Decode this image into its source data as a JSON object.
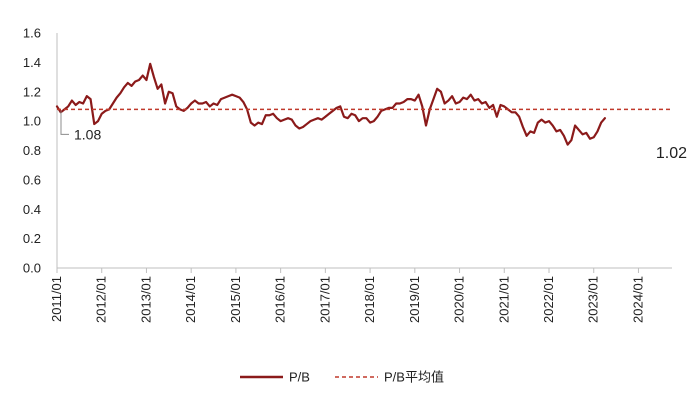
{
  "chart_data": {
    "type": "line",
    "title": "",
    "xlabel": "",
    "ylabel": "",
    "ylim": [
      0,
      1.6
    ],
    "yticks": [
      "0.0",
      "0.2",
      "0.4",
      "0.6",
      "0.8",
      "1.0",
      "1.2",
      "1.4",
      "1.6"
    ],
    "xlim": [
      "2011-01",
      "2024-10"
    ],
    "xticks": [
      "2011/01",
      "2012/01",
      "2013/01",
      "2014/01",
      "2015/01",
      "2016/01",
      "2017/01",
      "2018/01",
      "2019/01",
      "2020/01",
      "2021/01",
      "2022/01",
      "2023/01",
      "2024/01"
    ],
    "grid": false,
    "legend_position": "bottom",
    "series": [
      {
        "name": "P/B",
        "color": "#8b1a1a",
        "style": "solid",
        "points": [
          [
            "2011-01",
            1.1
          ],
          [
            "2011-02",
            1.06
          ],
          [
            "2011-03",
            1.08
          ],
          [
            "2011-04",
            1.1
          ],
          [
            "2011-05",
            1.14
          ],
          [
            "2011-06",
            1.11
          ],
          [
            "2011-07",
            1.13
          ],
          [
            "2011-08",
            1.12
          ],
          [
            "2011-09",
            1.17
          ],
          [
            "2011-10",
            1.15
          ],
          [
            "2011-11",
            0.98
          ],
          [
            "2011-12",
            1.0
          ],
          [
            "2012-01",
            1.05
          ],
          [
            "2012-02",
            1.07
          ],
          [
            "2012-03",
            1.08
          ],
          [
            "2012-04",
            1.12
          ],
          [
            "2012-05",
            1.16
          ],
          [
            "2012-06",
            1.19
          ],
          [
            "2012-07",
            1.23
          ],
          [
            "2012-08",
            1.26
          ],
          [
            "2012-09",
            1.24
          ],
          [
            "2012-10",
            1.27
          ],
          [
            "2012-11",
            1.28
          ],
          [
            "2012-12",
            1.31
          ],
          [
            "2013-01",
            1.28
          ],
          [
            "2013-02",
            1.39
          ],
          [
            "2013-03",
            1.3
          ],
          [
            "2013-04",
            1.22
          ],
          [
            "2013-05",
            1.25
          ],
          [
            "2013-06",
            1.12
          ],
          [
            "2013-07",
            1.2
          ],
          [
            "2013-08",
            1.19
          ],
          [
            "2013-09",
            1.1
          ],
          [
            "2013-10",
            1.08
          ],
          [
            "2013-11",
            1.07
          ],
          [
            "2013-12",
            1.09
          ],
          [
            "2014-01",
            1.12
          ],
          [
            "2014-02",
            1.14
          ],
          [
            "2014-03",
            1.12
          ],
          [
            "2014-04",
            1.12
          ],
          [
            "2014-05",
            1.13
          ],
          [
            "2014-06",
            1.1
          ],
          [
            "2014-07",
            1.12
          ],
          [
            "2014-08",
            1.11
          ],
          [
            "2014-09",
            1.15
          ],
          [
            "2014-10",
            1.16
          ],
          [
            "2014-11",
            1.17
          ],
          [
            "2014-12",
            1.18
          ],
          [
            "2015-01",
            1.17
          ],
          [
            "2015-02",
            1.16
          ],
          [
            "2015-03",
            1.13
          ],
          [
            "2015-04",
            1.08
          ],
          [
            "2015-05",
            0.99
          ],
          [
            "2015-06",
            0.97
          ],
          [
            "2015-07",
            0.99
          ],
          [
            "2015-08",
            0.98
          ],
          [
            "2015-09",
            1.04
          ],
          [
            "2015-10",
            1.04
          ],
          [
            "2015-11",
            1.05
          ],
          [
            "2015-12",
            1.02
          ],
          [
            "2016-01",
            1.0
          ],
          [
            "2016-02",
            1.01
          ],
          [
            "2016-03",
            1.02
          ],
          [
            "2016-04",
            1.01
          ],
          [
            "2016-05",
            0.97
          ],
          [
            "2016-06",
            0.95
          ],
          [
            "2016-07",
            0.96
          ],
          [
            "2016-08",
            0.98
          ],
          [
            "2016-09",
            1.0
          ],
          [
            "2016-10",
            1.01
          ],
          [
            "2016-11",
            1.02
          ],
          [
            "2016-12",
            1.01
          ],
          [
            "2017-01",
            1.03
          ],
          [
            "2017-02",
            1.05
          ],
          [
            "2017-03",
            1.07
          ],
          [
            "2017-04",
            1.09
          ],
          [
            "2017-05",
            1.1
          ],
          [
            "2017-06",
            1.03
          ],
          [
            "2017-07",
            1.02
          ],
          [
            "2017-08",
            1.05
          ],
          [
            "2017-09",
            1.04
          ],
          [
            "2017-10",
            1.0
          ],
          [
            "2017-11",
            1.02
          ],
          [
            "2017-12",
            1.02
          ],
          [
            "2018-01",
            0.99
          ],
          [
            "2018-02",
            1.0
          ],
          [
            "2018-03",
            1.03
          ],
          [
            "2018-04",
            1.07
          ],
          [
            "2018-05",
            1.08
          ],
          [
            "2018-06",
            1.09
          ],
          [
            "2018-07",
            1.09
          ],
          [
            "2018-08",
            1.12
          ],
          [
            "2018-09",
            1.12
          ],
          [
            "2018-10",
            1.13
          ],
          [
            "2018-11",
            1.15
          ],
          [
            "2018-12",
            1.15
          ],
          [
            "2019-01",
            1.14
          ],
          [
            "2019-02",
            1.18
          ],
          [
            "2019-03",
            1.1
          ],
          [
            "2019-04",
            0.97
          ],
          [
            "2019-05",
            1.08
          ],
          [
            "2019-06",
            1.15
          ],
          [
            "2019-07",
            1.22
          ],
          [
            "2019-08",
            1.2
          ],
          [
            "2019-09",
            1.12
          ],
          [
            "2019-10",
            1.14
          ],
          [
            "2019-11",
            1.17
          ],
          [
            "2019-12",
            1.12
          ],
          [
            "2020-01",
            1.13
          ],
          [
            "2020-02",
            1.16
          ],
          [
            "2020-03",
            1.15
          ],
          [
            "2020-04",
            1.18
          ],
          [
            "2020-05",
            1.14
          ],
          [
            "2020-06",
            1.15
          ],
          [
            "2020-07",
            1.12
          ],
          [
            "2020-08",
            1.13
          ],
          [
            "2020-09",
            1.09
          ],
          [
            "2020-10",
            1.11
          ],
          [
            "2020-11",
            1.03
          ],
          [
            "2020-12",
            1.11
          ],
          [
            "2021-01",
            1.1
          ],
          [
            "2021-02",
            1.08
          ],
          [
            "2021-03",
            1.06
          ],
          [
            "2021-04",
            1.06
          ],
          [
            "2021-05",
            1.03
          ],
          [
            "2021-06",
            0.96
          ],
          [
            "2021-07",
            0.9
          ],
          [
            "2021-08",
            0.93
          ],
          [
            "2021-09",
            0.92
          ],
          [
            "2021-10",
            0.99
          ],
          [
            "2021-11",
            1.01
          ],
          [
            "2021-12",
            0.99
          ],
          [
            "2022-01",
            1.0
          ],
          [
            "2022-02",
            0.97
          ],
          [
            "2022-03",
            0.93
          ],
          [
            "2022-04",
            0.94
          ],
          [
            "2022-05",
            0.9
          ],
          [
            "2022-06",
            0.84
          ],
          [
            "2022-07",
            0.87
          ],
          [
            "2022-08",
            0.97
          ],
          [
            "2022-09",
            0.94
          ],
          [
            "2022-10",
            0.91
          ],
          [
            "2022-11",
            0.92
          ],
          [
            "2022-12",
            0.88
          ],
          [
            "2023-01",
            0.89
          ],
          [
            "2023-02",
            0.93
          ],
          [
            "2023-03",
            0.99
          ],
          [
            "2023-04",
            1.02
          ]
        ]
      },
      {
        "name": "P/B平均值",
        "color": "#c0392b",
        "style": "dashed",
        "constant": 1.08
      }
    ],
    "annotations": [
      {
        "text": "1.08",
        "at": [
          "2011-01",
          1.08
        ]
      },
      {
        "text": "1.02",
        "at": [
          "2024-10",
          1.02
        ]
      }
    ]
  }
}
